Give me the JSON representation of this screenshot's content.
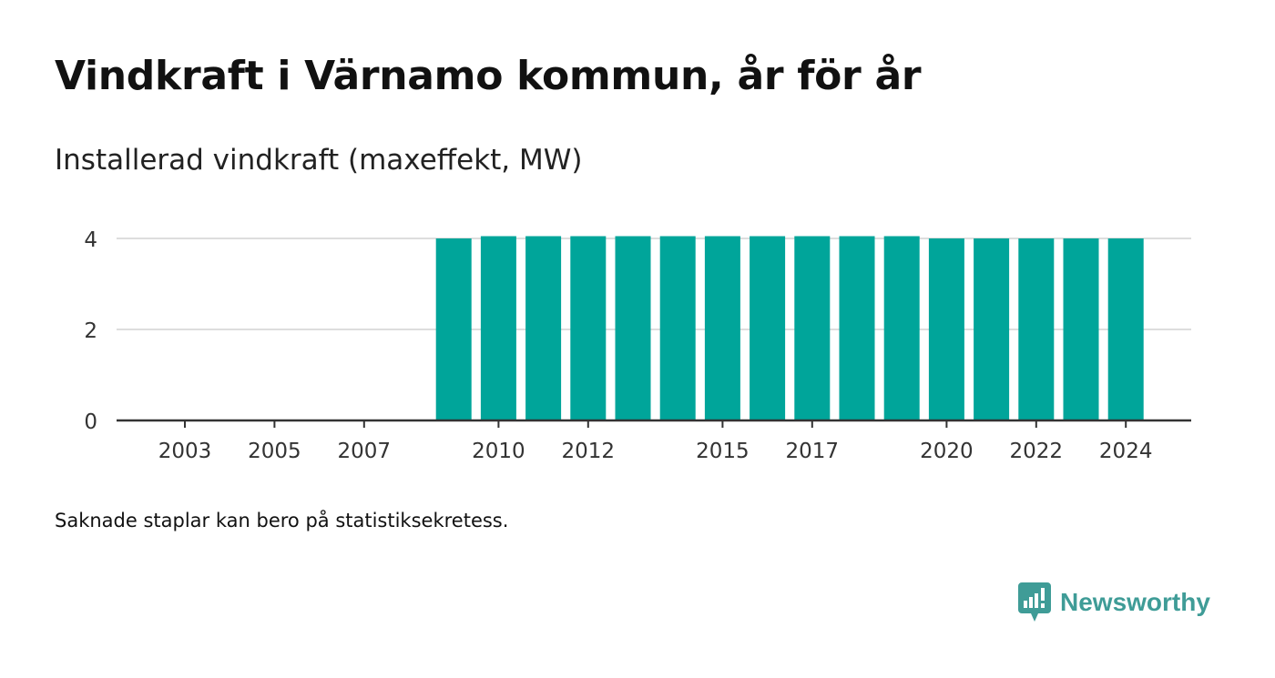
{
  "title": "Vindkraft i Värnamo kommun, år för år",
  "subtitle": "Installerad vindkraft (maxeffekt, MW)",
  "note": "Saknade staplar kan bero på statistiksekretess.",
  "brand": {
    "name": "Newsworthy",
    "icon": "newsworthy-logo-icon",
    "color": "#3f9c97"
  },
  "chart_data": {
    "type": "bar",
    "categories": [
      "2001",
      "2002",
      "2003",
      "2004",
      "2005",
      "2006",
      "2007",
      "2008",
      "2009",
      "2010",
      "2011",
      "2012",
      "2013",
      "2014",
      "2015",
      "2016",
      "2017",
      "2018",
      "2019",
      "2020",
      "2021",
      "2022",
      "2023",
      "2024"
    ],
    "values": [
      null,
      null,
      null,
      null,
      null,
      null,
      null,
      null,
      4.0,
      4.05,
      4.05,
      4.05,
      4.05,
      4.05,
      4.05,
      4.05,
      4.05,
      4.05,
      4.05,
      4.0,
      4.0,
      4.0,
      4.0,
      4.0
    ],
    "x_tick_labels": [
      "2003",
      "2005",
      "2007",
      "2010",
      "2012",
      "2015",
      "2017",
      "2020",
      "2022",
      "2024"
    ],
    "y_ticks": [
      0,
      2,
      4
    ],
    "ylim": [
      0,
      4.4
    ],
    "bar_color": "#00a59a",
    "grid": true,
    "xlabel": "",
    "ylabel": ""
  }
}
